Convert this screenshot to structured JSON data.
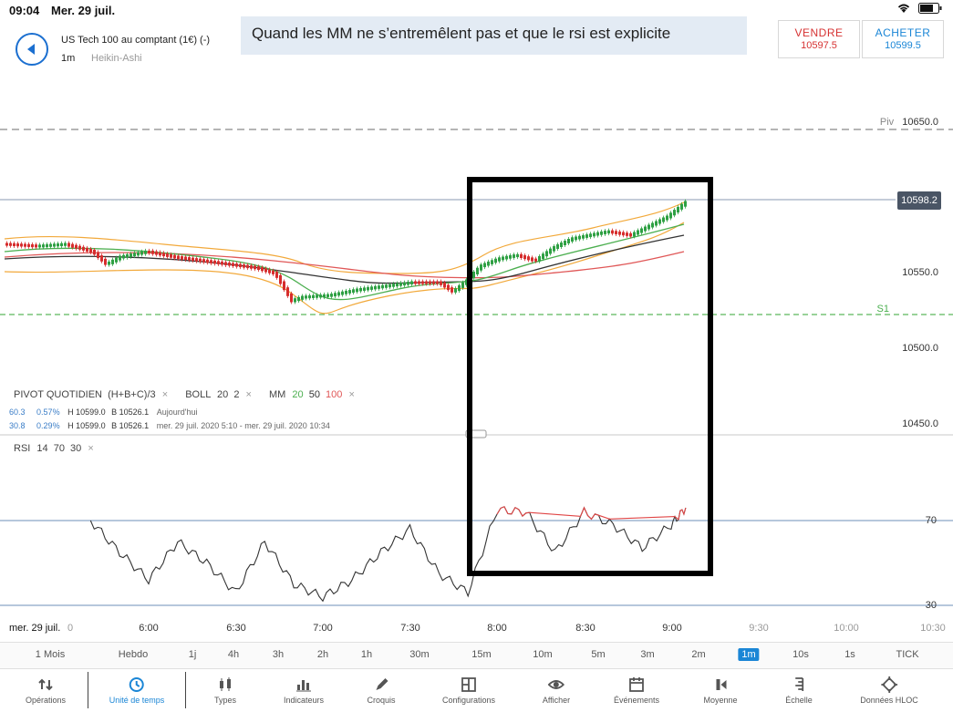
{
  "status": {
    "time": "09:04",
    "date": "Mer. 29 juil."
  },
  "header": {
    "instrument": "US Tech 100 au comptant (1€) (-)",
    "timeframe": "1m",
    "chart_type": "Heikin-Ashi",
    "note": "Quand les MM ne s’entremêlent pas et que le rsi est explicite",
    "sell_label": "VENDRE",
    "sell_price": "10597.5",
    "buy_label": "ACHETER",
    "buy_price": "10599.5"
  },
  "indicators": {
    "pivot": "PIVOT",
    "pivot_period": "QUOTIDIEN",
    "pivot_formula": "(H+B+C)/3",
    "boll": "BOLL",
    "boll_p1": "20",
    "boll_p2": "2",
    "mm": "MM",
    "mm1": "20",
    "mm2": "50",
    "mm3": "100",
    "close_glyph": "×",
    "row1": {
      "v1": "60.3",
      "v2": "0.57%",
      "h": "H 10599.0",
      "b": "B 10526.1",
      "range": "Aujourd'hui"
    },
    "row2": {
      "v1": "30.8",
      "v2": "0.29%",
      "h": "H 10599.0",
      "b": "B 10526.1",
      "range": "mer. 29 juil. 2020 5:10 - mer. 29 juil. 2020 10:34"
    },
    "rsi": "RSI",
    "rsi_p1": "14",
    "rsi_p2": "70",
    "rsi_p3": "30"
  },
  "levels": {
    "piv_label": "Piv",
    "piv_value": "10650.0",
    "current_price": "10598.2",
    "p10550": "10550.0",
    "s1_label": "S1",
    "p10500": "10500.0",
    "p10450": "10450.0",
    "rsi70": "70",
    "rsi30": "30"
  },
  "xaxis": {
    "date_label": "mer. 29 juil.",
    "zero": "0",
    "ticks": [
      "6:00",
      "6:30",
      "7:00",
      "7:30",
      "8:00",
      "8:30",
      "9:00",
      "9:30",
      "10:00",
      "10:30"
    ]
  },
  "timeframes": [
    "1 Mois",
    "Hebdo",
    "1j",
    "4h",
    "3h",
    "2h",
    "1h",
    "30m",
    "15m",
    "10m",
    "5m",
    "3m",
    "2m",
    "1m",
    "10s",
    "1s",
    "TICK"
  ],
  "active_timeframe": "1m",
  "toolbar": [
    "Opérations",
    "Unité de temps",
    "Types",
    "Indicateurs",
    "Croquis",
    "Configurations",
    "Afficher",
    "Événements",
    "Moyenne",
    "Échelle",
    "Données HLOC"
  ],
  "active_tool": "Unité de temps",
  "colors": {
    "accent": "#1b86d6",
    "sell": "#d63232",
    "bull": "#2ea043",
    "bear": "#d62d2d",
    "boll": "#f2a93b",
    "ma20": "#4caf50",
    "ma50": "#333333",
    "ma100": "#e05757"
  },
  "chart_data": {
    "type": "line",
    "series": [
      {
        "name": "RSI",
        "x": [
          "5:40",
          "5:50",
          "6:00",
          "6:10",
          "6:20",
          "6:30",
          "6:40",
          "6:50",
          "7:00",
          "7:10",
          "7:20",
          "7:30",
          "7:40",
          "7:50",
          "8:00",
          "8:10",
          "8:20",
          "8:30",
          "8:40",
          "8:50",
          "9:00",
          "9:05"
        ],
        "y": [
          70,
          55,
          42,
          60,
          50,
          36,
          60,
          40,
          34,
          42,
          55,
          66,
          45,
          36,
          75,
          74,
          55,
          74,
          68,
          57,
          68,
          76
        ]
      }
    ],
    "y_ranges": {
      "rsi_levels": [
        30,
        70
      ]
    }
  }
}
